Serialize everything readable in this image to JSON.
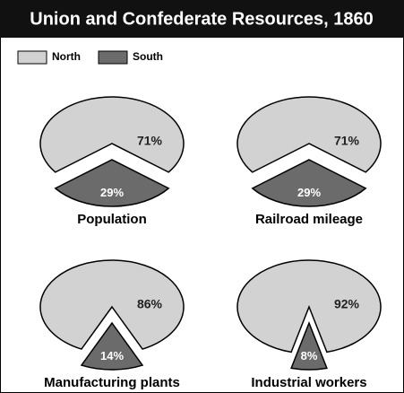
{
  "title": "Union and Confederate Resources, 1860",
  "chart_data": [
    {
      "type": "pie",
      "title": "Population",
      "categories": [
        "North",
        "South"
      ],
      "values": [
        71,
        29
      ],
      "value_labels": [
        "71%",
        "29%"
      ],
      "colors": [
        "#d2d2d2",
        "#6b6b6b"
      ]
    },
    {
      "type": "pie",
      "title": "Railroad mileage",
      "categories": [
        "North",
        "South"
      ],
      "values": [
        71,
        29
      ],
      "value_labels": [
        "71%",
        "29%"
      ],
      "colors": [
        "#d2d2d2",
        "#6b6b6b"
      ]
    },
    {
      "type": "pie",
      "title": "Manufacturing plants",
      "categories": [
        "North",
        "South"
      ],
      "values": [
        86,
        14
      ],
      "value_labels": [
        "86%",
        "14%"
      ],
      "colors": [
        "#d2d2d2",
        "#6b6b6b"
      ]
    },
    {
      "type": "pie",
      "title": "Industrial workers",
      "categories": [
        "North",
        "South"
      ],
      "values": [
        92,
        8
      ],
      "value_labels": [
        "92%",
        "8%"
      ],
      "colors": [
        "#d2d2d2",
        "#6b6b6b"
      ]
    }
  ]
}
